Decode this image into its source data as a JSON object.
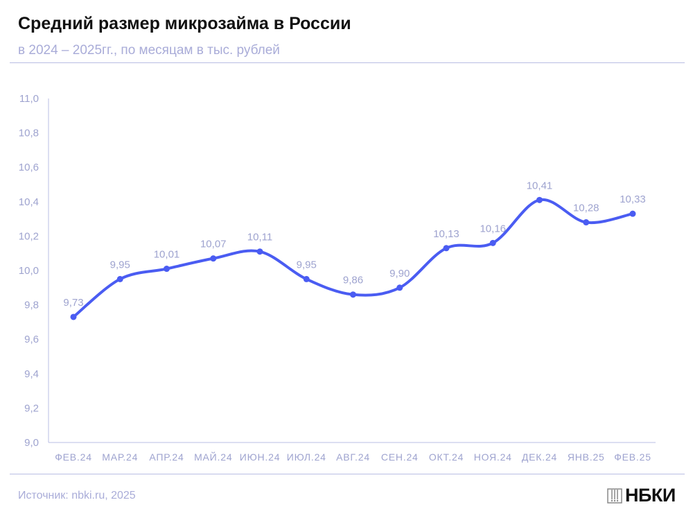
{
  "header": {
    "title": "Средний размер микрозайма в России",
    "subtitle": "в 2024 – 2025гг., по месяцам в тыс. рублей"
  },
  "footer": {
    "source": "Источник: nbki.ru, 2025",
    "logo": "НБКИ"
  },
  "colors": {
    "line": "#4a5cf2",
    "label": "#9ea3cf",
    "axis": "#b9bde3"
  },
  "chart_data": {
    "type": "line",
    "title": "Средний размер микрозайма в России",
    "subtitle": "в 2024 – 2025гг., по месяцам в тыс. рублей",
    "categories": [
      "ФЕВ.24",
      "МАР.24",
      "АПР.24",
      "МАЙ.24",
      "ИЮН.24",
      "ИЮЛ.24",
      "АВГ.24",
      "СЕН.24",
      "ОКТ.24",
      "НОЯ.24",
      "ДЕК.24",
      "ЯНВ.25",
      "ФЕВ.25"
    ],
    "values": [
      9.73,
      9.95,
      10.01,
      10.07,
      10.11,
      9.95,
      9.86,
      9.9,
      10.13,
      10.16,
      10.41,
      10.28,
      10.33
    ],
    "data_labels": [
      "9,73",
      "9,95",
      "10,01",
      "10,07",
      "10,11",
      "9,95",
      "9,86",
      "9,90",
      "10,13",
      "10,16",
      "10,41",
      "10,28",
      "10,33"
    ],
    "yticks": [
      "9,0",
      "9,2",
      "9,4",
      "9,6",
      "9,8",
      "10,0",
      "10,2",
      "10,4",
      "10,6",
      "10,8",
      "11,0"
    ],
    "ylim": [
      9.0,
      11.0
    ],
    "grid": false,
    "xlabel": "",
    "ylabel": ""
  }
}
